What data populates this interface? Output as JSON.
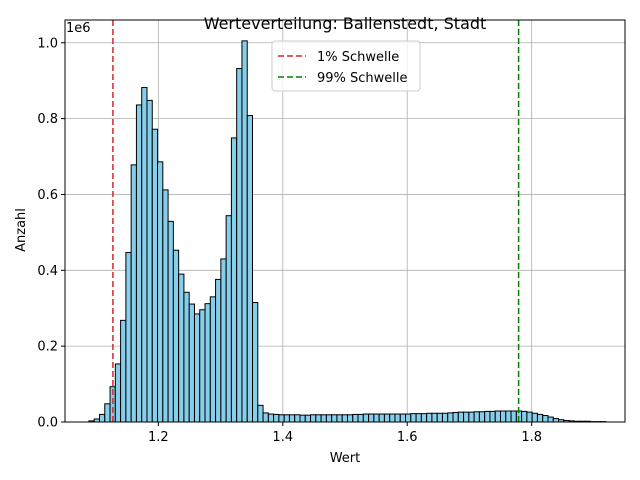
{
  "chart_data": {
    "type": "bar",
    "title": "Werteverteilung: Ballenstedt, Stadt",
    "xlabel": "Wert",
    "ylabel": "Anzahl",
    "y_scale_note": "1e6",
    "xlim": [
      1.05,
      1.95
    ],
    "ylim": [
      0,
      1.06
    ],
    "x_ticks": [
      1.2,
      1.4,
      1.6,
      1.8
    ],
    "x_tick_labels": [
      "1.2",
      "1.4",
      "1.6",
      "1.8"
    ],
    "y_ticks": [
      0.0,
      0.2,
      0.4,
      0.6,
      0.8,
      1.0
    ],
    "y_tick_labels": [
      "0.0",
      "0.2",
      "0.4",
      "0.6",
      "0.8",
      "1.0"
    ],
    "grid": true,
    "bar_color": "#87ceeb",
    "bar_edge_color": "#000000",
    "bin_start": 1.08,
    "bin_width": 0.00848,
    "values": [
      0.0,
      0.003,
      0.008,
      0.02,
      0.048,
      0.093,
      0.153,
      0.268,
      0.447,
      0.678,
      0.836,
      0.882,
      0.848,
      0.772,
      0.686,
      0.612,
      0.529,
      0.453,
      0.39,
      0.342,
      0.311,
      0.285,
      0.296,
      0.312,
      0.33,
      0.376,
      0.43,
      0.544,
      0.749,
      0.932,
      1.005,
      0.808,
      0.315,
      0.044,
      0.024,
      0.021,
      0.02,
      0.019,
      0.019,
      0.019,
      0.019,
      0.018,
      0.018,
      0.019,
      0.019,
      0.019,
      0.019,
      0.019,
      0.019,
      0.019,
      0.019,
      0.02,
      0.02,
      0.021,
      0.021,
      0.021,
      0.021,
      0.021,
      0.021,
      0.021,
      0.021,
      0.021,
      0.022,
      0.022,
      0.022,
      0.023,
      0.023,
      0.023,
      0.023,
      0.024,
      0.025,
      0.026,
      0.026,
      0.026,
      0.027,
      0.027,
      0.028,
      0.028,
      0.029,
      0.029,
      0.029,
      0.029,
      0.029,
      0.028,
      0.026,
      0.023,
      0.02,
      0.017,
      0.013,
      0.009,
      0.006,
      0.004,
      0.003,
      0.002,
      0.002,
      0.002,
      0.001,
      0.001,
      0.001,
      0.0
    ],
    "thresholds": [
      {
        "name": "1% Schwelle",
        "x": 1.127,
        "color": "#d62728"
      },
      {
        "name": "99% Schwelle",
        "x": 1.779,
        "color": "#008000"
      }
    ],
    "legend_position": "top-center"
  }
}
